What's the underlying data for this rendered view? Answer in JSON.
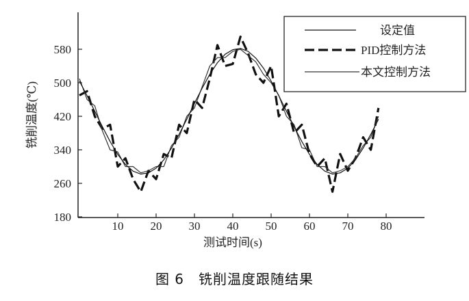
{
  "caption": "图 6　铣削温度跟随结果",
  "chart_data": {
    "type": "line",
    "title": "",
    "xlabel": "测试时间(s)",
    "ylabel": "铣削温度(℃)",
    "xlim": [
      0,
      90
    ],
    "ylim": [
      180,
      660
    ],
    "xticks": [
      10,
      20,
      30,
      40,
      50,
      60,
      70,
      80
    ],
    "yticks": [
      180,
      260,
      340,
      420,
      500,
      580
    ],
    "grid": false,
    "legend_position": "top-right",
    "x": [
      0,
      2,
      4,
      6,
      8,
      10,
      12,
      14,
      16,
      18,
      20,
      22,
      24,
      26,
      28,
      30,
      32,
      34,
      36,
      38,
      40,
      42,
      44,
      46,
      48,
      50,
      52,
      54,
      56,
      58,
      60,
      62,
      64,
      66,
      68,
      70,
      72,
      74,
      76,
      78
    ],
    "series": [
      {
        "name": "设定值",
        "style": "thin-solid",
        "color": "#111111",
        "values": [
          504,
          469,
          432,
          395,
          360,
          329,
          305,
          289,
          282,
          285,
          296,
          316,
          344,
          377,
          413,
          451,
          487,
          520,
          548,
          568,
          579,
          582,
          575,
          559,
          535,
          504,
          469,
          432,
          395,
          360,
          329,
          305,
          289,
          282,
          285,
          296,
          316,
          344,
          377,
          413
        ]
      },
      {
        "name": "PID控制方法",
        "style": "thick-dashed",
        "color": "#111111",
        "values": [
          470,
          480,
          420,
          390,
          400,
          300,
          320,
          270,
          240,
          290,
          270,
          330,
          320,
          400,
          380,
          460,
          440,
          510,
          590,
          540,
          545,
          610,
          570,
          520,
          500,
          540,
          420,
          450,
          380,
          400,
          330,
          300,
          320,
          240,
          330,
          290,
          320,
          370,
          340,
          440
        ]
      },
      {
        "name": "本文控制方法",
        "style": "thin-solid",
        "color": "#333333",
        "values": [
          510,
          460,
          445,
          385,
          340,
          335,
          300,
          300,
          285,
          290,
          300,
          300,
          350,
          370,
          420,
          440,
          490,
          540,
          560,
          560,
          575,
          580,
          565,
          550,
          520,
          500,
          470,
          420,
          400,
          345,
          340,
          300,
          300,
          285,
          290,
          300,
          320,
          350,
          370,
          420
        ]
      }
    ]
  }
}
